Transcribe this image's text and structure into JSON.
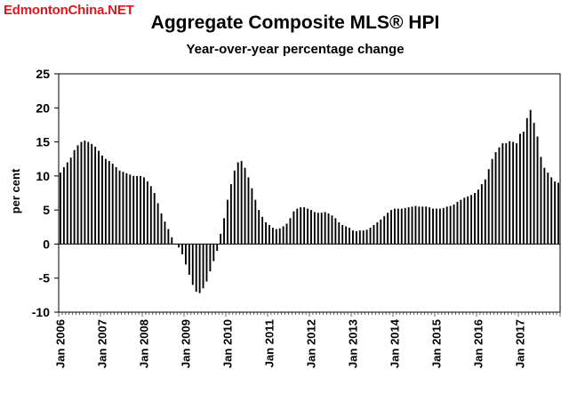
{
  "watermark": "EdmontonChina.NET",
  "chart_data": {
    "type": "bar",
    "title": "Aggregate Composite MLS® HPI",
    "subtitle": "Year-over-year percentage change",
    "ylabel": "per cent",
    "xlabel": "",
    "ylim": [
      -10,
      25
    ],
    "yticks": [
      -10,
      -5,
      0,
      5,
      10,
      15,
      20,
      25
    ],
    "grid": false,
    "legend": "none",
    "bar_color": "#000000",
    "x_tick_labels": [
      "Jan 2006",
      "Jan 2007",
      "Jan 2008",
      "Jan 2009",
      "Jan 2010",
      "Jan 2011",
      "Jan 2012",
      "Jan 2013",
      "Jan 2014",
      "Jan 2015",
      "Jan 2016",
      "Jan 2017"
    ],
    "x_tick_start_index": 0,
    "x_tick_every": 12,
    "x_start": "2006-01",
    "frequency": "monthly",
    "values": [
      10.5,
      11.3,
      12.0,
      12.7,
      13.8,
      14.5,
      15.0,
      15.2,
      15.0,
      14.7,
      14.3,
      13.7,
      13.0,
      12.5,
      12.2,
      11.8,
      11.3,
      10.8,
      10.6,
      10.4,
      10.2,
      10.0,
      10.0,
      10.0,
      9.8,
      9.2,
      8.5,
      7.5,
      6.0,
      4.5,
      3.3,
      2.2,
      1.0,
      0.0,
      -0.5,
      -1.5,
      -3.0,
      -4.5,
      -6.0,
      -7.0,
      -7.2,
      -6.5,
      -5.5,
      -4.0,
      -2.5,
      -1.0,
      1.5,
      3.8,
      6.5,
      8.8,
      10.8,
      12.0,
      12.2,
      11.2,
      9.8,
      8.2,
      6.5,
      5.0,
      4.0,
      3.2,
      2.8,
      2.4,
      2.2,
      2.3,
      2.6,
      3.0,
      3.8,
      4.8,
      5.2,
      5.4,
      5.4,
      5.2,
      5.0,
      4.7,
      4.6,
      4.6,
      4.7,
      4.5,
      4.2,
      3.8,
      3.2,
      2.8,
      2.6,
      2.4,
      2.0,
      1.9,
      2.0,
      2.0,
      2.1,
      2.4,
      2.8,
      3.2,
      3.6,
      4.1,
      4.6,
      5.0,
      5.2,
      5.2,
      5.2,
      5.3,
      5.4,
      5.5,
      5.6,
      5.5,
      5.5,
      5.5,
      5.4,
      5.2,
      5.2,
      5.2,
      5.3,
      5.5,
      5.6,
      5.8,
      6.2,
      6.5,
      6.8,
      7.0,
      7.2,
      7.5,
      8.0,
      8.8,
      9.5,
      11.0,
      12.5,
      13.5,
      14.2,
      14.8,
      14.8,
      15.1,
      15.0,
      14.8,
      16.2,
      16.5,
      18.5,
      19.7,
      17.8,
      15.8,
      12.8,
      11.2,
      10.5,
      9.8,
      9.2,
      9.0
    ]
  }
}
